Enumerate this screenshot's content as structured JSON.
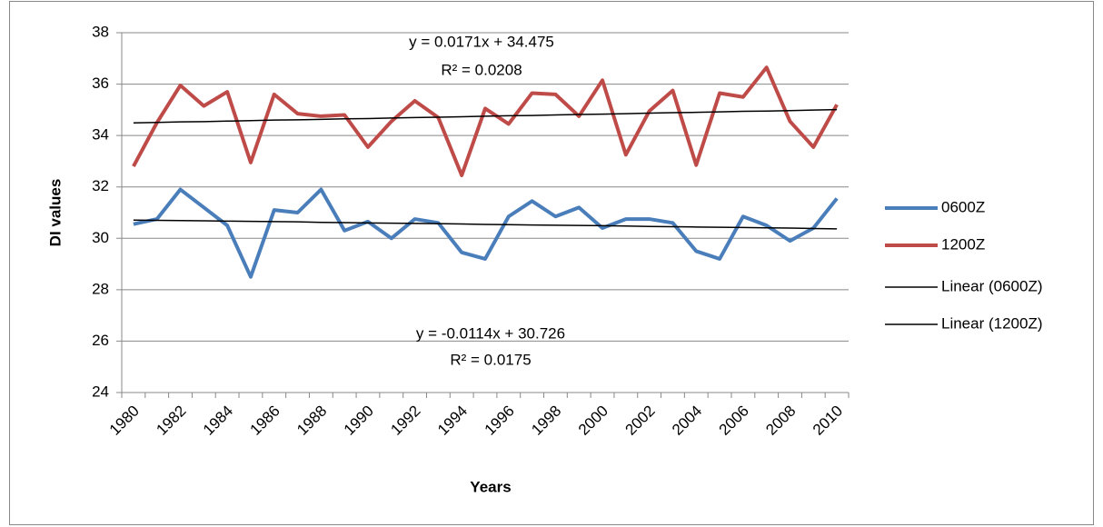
{
  "chart_data": {
    "type": "line",
    "x_label": "Years",
    "y_label": "DI values",
    "categories": [
      "1980",
      null,
      "1982",
      null,
      "1984",
      null,
      "1986",
      null,
      "1988",
      null,
      "1990",
      null,
      "1992",
      null,
      "1994",
      null,
      "1996",
      null,
      "1998",
      null,
      "2000",
      null,
      "2002",
      null,
      "2004",
      null,
      "2006",
      null,
      "2008",
      null,
      "2010"
    ],
    "ylim": [
      24,
      38
    ],
    "yticks": [
      24,
      26,
      28,
      30,
      32,
      34,
      36,
      38
    ],
    "grid": true,
    "legend": "right",
    "series": [
      {
        "name": "0600Z",
        "color": "#4a7ebb",
        "width": 4,
        "values": [
          30.55,
          30.75,
          31.9,
          31.2,
          30.5,
          28.5,
          31.1,
          31.0,
          31.9,
          30.3,
          30.65,
          30.0,
          30.75,
          30.6,
          29.45,
          29.2,
          30.85,
          31.45,
          30.85,
          31.2,
          30.4,
          30.75,
          30.75,
          30.6,
          29.5,
          29.2,
          30.85,
          30.5,
          29.9,
          30.4,
          31.55
        ]
      },
      {
        "name": "1200Z",
        "color": "#be4b48",
        "width": 4,
        "values": [
          32.8,
          34.5,
          35.95,
          35.15,
          35.7,
          32.95,
          35.6,
          34.85,
          34.75,
          34.8,
          33.55,
          34.55,
          35.35,
          34.7,
          32.45,
          35.05,
          34.45,
          35.65,
          35.6,
          34.75,
          36.15,
          33.25,
          34.95,
          35.75,
          32.85,
          35.65,
          35.5,
          36.65,
          34.55,
          33.55,
          35.2
        ]
      },
      {
        "name": "Linear (0600Z)",
        "color": "#000000",
        "width": 1.5,
        "values": [
          30.71,
          30.7,
          30.69,
          30.68,
          30.67,
          30.66,
          30.65,
          30.64,
          30.62,
          30.61,
          30.6,
          30.59,
          30.58,
          30.57,
          30.56,
          30.54,
          30.53,
          30.52,
          30.51,
          30.5,
          30.49,
          30.48,
          30.46,
          30.45,
          30.44,
          30.43,
          30.42,
          30.41,
          30.4,
          30.38,
          30.37
        ]
      },
      {
        "name": "Linear (1200Z)",
        "color": "#000000",
        "width": 1.5,
        "values": [
          34.49,
          34.51,
          34.53,
          34.54,
          34.56,
          34.58,
          34.6,
          34.61,
          34.63,
          34.65,
          34.66,
          34.68,
          34.7,
          34.71,
          34.73,
          34.75,
          34.77,
          34.78,
          34.8,
          34.82,
          34.83,
          34.85,
          34.87,
          34.89,
          34.9,
          34.92,
          34.94,
          34.95,
          34.97,
          34.99,
          35.01
        ]
      }
    ],
    "annotations": [
      "y = 0.0171x + 34.475",
      "R² = 0.0208",
      "y = -0.0114x + 30.726",
      "R² = 0.0175"
    ]
  }
}
